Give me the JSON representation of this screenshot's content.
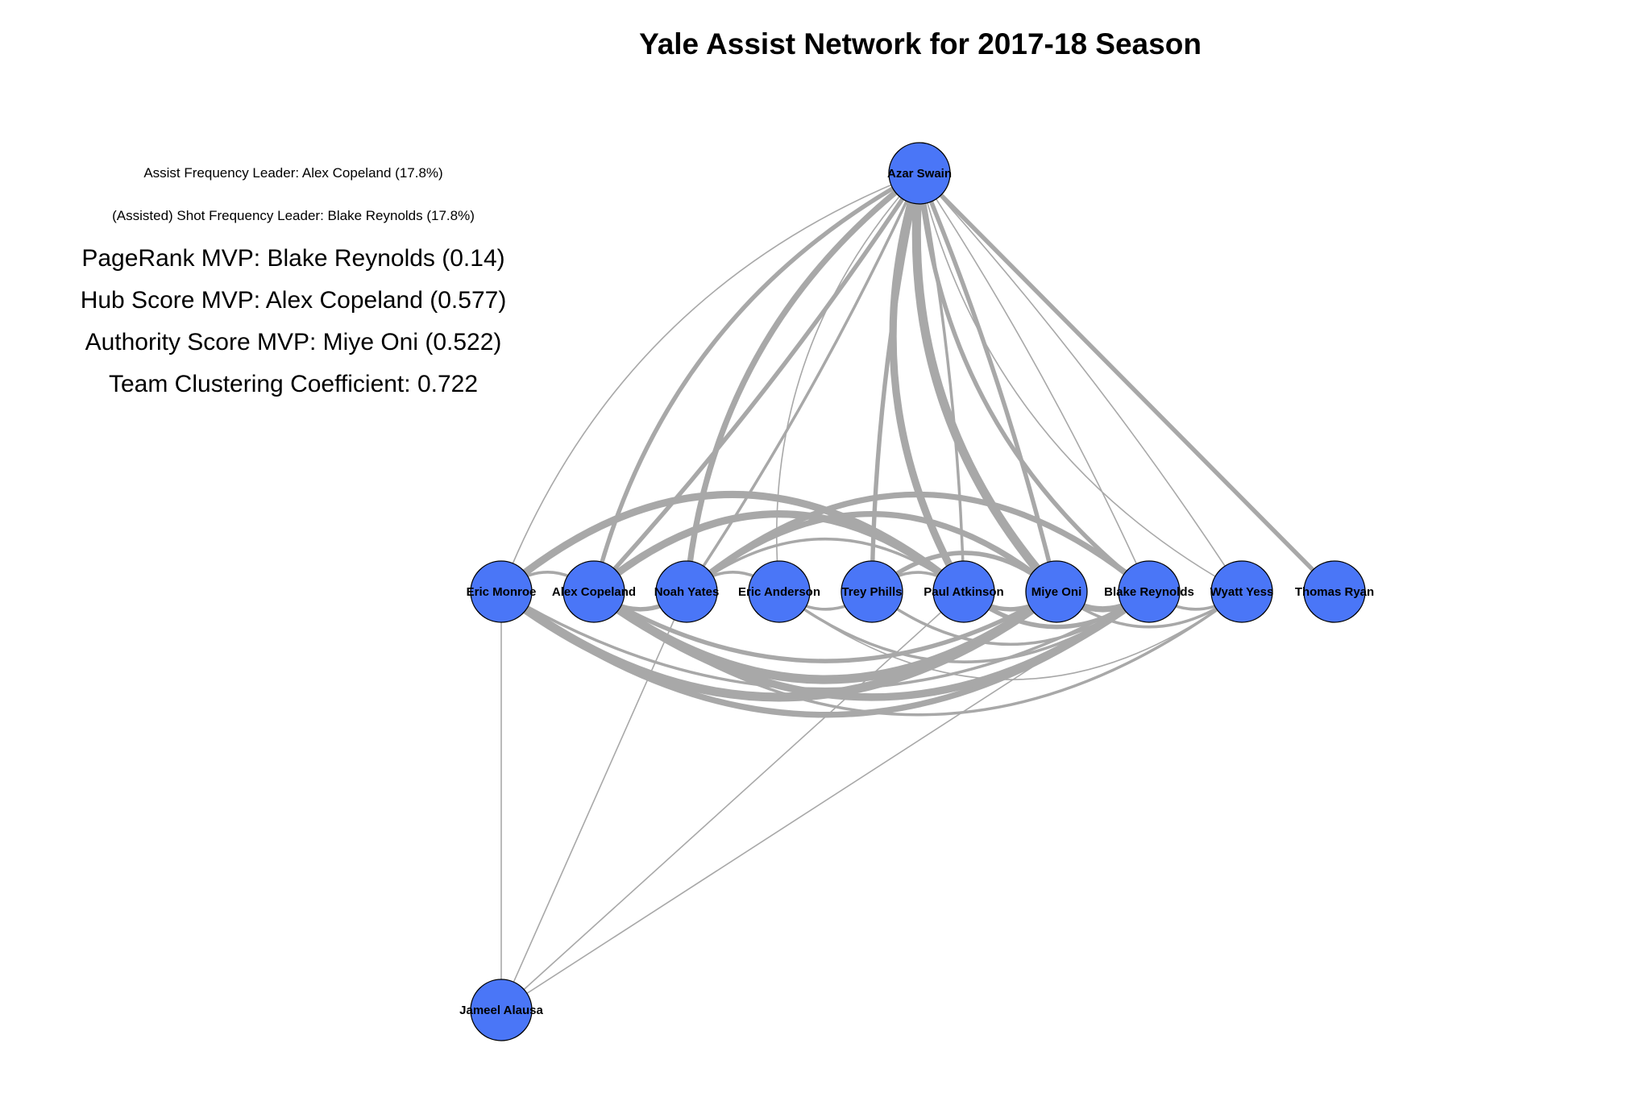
{
  "title": "Yale Assist Network for 2017-18 Season",
  "stats": {
    "assist_leader": "Assist Frequency Leader: Alex Copeland (17.8%)",
    "shot_leader": "(Assisted) Shot Frequency Leader: Blake Reynolds (17.8%)",
    "pagerank": "PageRank MVP: Blake Reynolds (0.14)",
    "hub": "Hub Score MVP: Alex Copeland (0.577)",
    "authority": "Authority Score MVP: Miye Oni (0.522)",
    "clustering": "Team Clustering Coefficient: 0.722"
  },
  "colors": {
    "node_fill": "#4a76f7",
    "edge": "#a8a8a8"
  },
  "nodes": [
    {
      "id": "azar",
      "label": "Azar Swain"
    },
    {
      "id": "monroe",
      "label": "Eric Monroe"
    },
    {
      "id": "copeland",
      "label": "Alex Copeland"
    },
    {
      "id": "yates",
      "label": "Noah Yates"
    },
    {
      "id": "anderson",
      "label": "Eric Anderson"
    },
    {
      "id": "phills",
      "label": "Trey Phills"
    },
    {
      "id": "atkinson",
      "label": "Paul Atkinson"
    },
    {
      "id": "oni",
      "label": "Miye Oni"
    },
    {
      "id": "reynolds",
      "label": "Blake Reynolds"
    },
    {
      "id": "yess",
      "label": "Wyatt Yess"
    },
    {
      "id": "ryan",
      "label": "Thomas Ryan"
    },
    {
      "id": "alausa",
      "label": "Jameel Alausa"
    }
  ],
  "edges": [
    {
      "from": "azar",
      "to": "monroe",
      "weight": 1
    },
    {
      "from": "azar",
      "to": "copeland",
      "weight": 3
    },
    {
      "from": "azar",
      "to": "yates",
      "weight": 4
    },
    {
      "from": "azar",
      "to": "anderson",
      "weight": 1
    },
    {
      "from": "azar",
      "to": "phills",
      "weight": 3
    },
    {
      "from": "azar",
      "to": "atkinson",
      "weight": 5
    },
    {
      "from": "azar",
      "to": "oni",
      "weight": 6
    },
    {
      "from": "azar",
      "to": "reynolds",
      "weight": 3
    },
    {
      "from": "azar",
      "to": "yess",
      "weight": 1
    },
    {
      "from": "azar",
      "to": "ryan",
      "weight": 3
    },
    {
      "from": "copeland",
      "to": "azar",
      "weight": 3
    },
    {
      "from": "yates",
      "to": "azar",
      "weight": 2
    },
    {
      "from": "atkinson",
      "to": "azar",
      "weight": 2
    },
    {
      "from": "oni",
      "to": "azar",
      "weight": 3
    },
    {
      "from": "reynolds",
      "to": "azar",
      "weight": 1
    },
    {
      "from": "yess",
      "to": "azar",
      "weight": 1
    },
    {
      "from": "monroe",
      "to": "copeland",
      "weight": 2
    },
    {
      "from": "monroe",
      "to": "atkinson",
      "weight": 5
    },
    {
      "from": "monroe",
      "to": "oni",
      "weight": 6
    },
    {
      "from": "monroe",
      "to": "reynolds",
      "weight": 4
    },
    {
      "from": "monroe",
      "to": "alausa",
      "weight": 1
    },
    {
      "from": "copeland",
      "to": "yates",
      "weight": 3
    },
    {
      "from": "copeland",
      "to": "atkinson",
      "weight": 5
    },
    {
      "from": "copeland",
      "to": "oni",
      "weight": 6
    },
    {
      "from": "copeland",
      "to": "reynolds",
      "weight": 5
    },
    {
      "from": "copeland",
      "to": "yess",
      "weight": 2
    },
    {
      "from": "yates",
      "to": "oni",
      "weight": 4
    },
    {
      "from": "yates",
      "to": "reynolds",
      "weight": 4
    },
    {
      "from": "yates",
      "to": "anderson",
      "weight": 2
    },
    {
      "from": "yates",
      "to": "alausa",
      "weight": 1
    },
    {
      "from": "anderson",
      "to": "phills",
      "weight": 2
    },
    {
      "from": "anderson",
      "to": "reynolds",
      "weight": 2
    },
    {
      "from": "anderson",
      "to": "yess",
      "weight": 1
    },
    {
      "from": "phills",
      "to": "atkinson",
      "weight": 2
    },
    {
      "from": "phills",
      "to": "oni",
      "weight": 3
    },
    {
      "from": "phills",
      "to": "reynolds",
      "weight": 2
    },
    {
      "from": "atkinson",
      "to": "oni",
      "weight": 3
    },
    {
      "from": "atkinson",
      "to": "reynolds",
      "weight": 3
    },
    {
      "from": "atkinson",
      "to": "alausa",
      "weight": 1
    },
    {
      "from": "oni",
      "to": "reynolds",
      "weight": 4
    },
    {
      "from": "oni",
      "to": "yess",
      "weight": 2
    },
    {
      "from": "reynolds",
      "to": "alausa",
      "weight": 1
    },
    {
      "from": "reynolds",
      "to": "yess",
      "weight": 2
    },
    {
      "from": "atkinson",
      "to": "yates",
      "weight": 2
    },
    {
      "from": "oni",
      "to": "copeland",
      "weight": 3
    },
    {
      "from": "reynolds",
      "to": "monroe",
      "weight": 2
    }
  ]
}
